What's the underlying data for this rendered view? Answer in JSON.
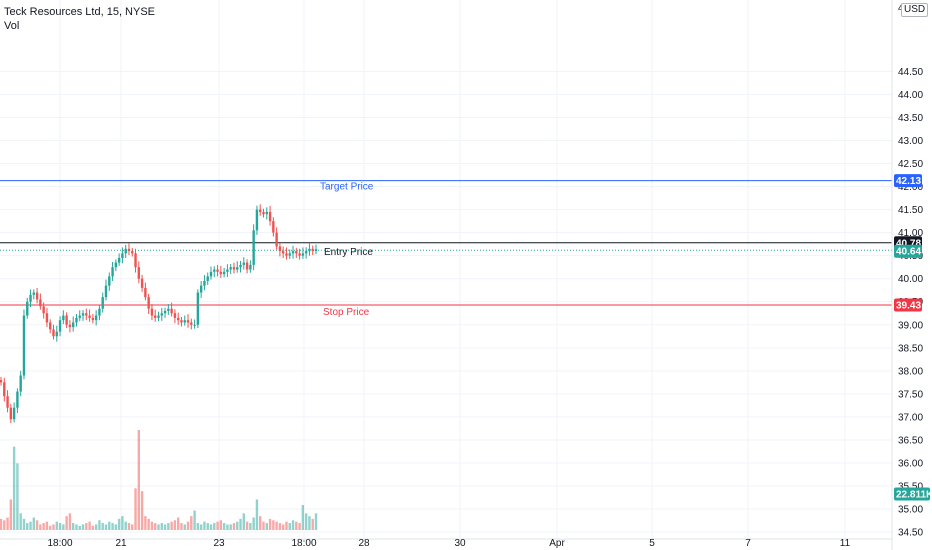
{
  "symbol": {
    "title": "Teck Resources Ltd, 15, NYSE",
    "volume_label": "Vol",
    "currency": "USD",
    "top_tick_partial": "4"
  },
  "colors": {
    "up": "#26a69a",
    "down": "#ef5350",
    "target": "#2962ff",
    "stop": "#f23645",
    "entry": "#131722",
    "current": "#26a69a"
  },
  "levels": {
    "target": {
      "label": "Target Price",
      "value": 42.13,
      "badge": "42.13"
    },
    "entry": {
      "label": "Entry Price",
      "value": 40.78,
      "badge": "40.78"
    },
    "stop": {
      "label": "Stop Price",
      "value": 39.43,
      "badge": "39.43"
    },
    "last": {
      "value": 40.64,
      "badge": "40.64"
    },
    "volume": {
      "badge": "22.811K"
    }
  },
  "chart_data": {
    "type": "candlestick",
    "title": "Teck Resources Ltd, 15, NYSE",
    "y_range": [
      34.35,
      46.05
    ],
    "y_ticks": [
      "44.50",
      "44.00",
      "43.50",
      "43.00",
      "42.50",
      "42.00",
      "41.50",
      "41.00",
      "40.50",
      "40.00",
      "39.50",
      "39.00",
      "38.50",
      "38.00",
      "37.50",
      "37.00",
      "36.50",
      "36.00",
      "35.50",
      "35.00",
      "34.50"
    ],
    "x_ticks": [
      "18:00",
      "21",
      "23",
      "18:00",
      "28",
      "30",
      "Apr",
      "5",
      "7",
      "11"
    ],
    "price_path": [
      37.75,
      37.45,
      37.2,
      36.95,
      37.2,
      37.55,
      37.9,
      39.2,
      39.5,
      39.65,
      39.7,
      39.55,
      39.4,
      39.25,
      39.05,
      38.9,
      38.75,
      38.85,
      39.1,
      39.2,
      39.0,
      38.95,
      39.05,
      39.15,
      39.2,
      39.25,
      39.2,
      39.15,
      39.1,
      39.2,
      39.35,
      39.6,
      39.85,
      40.05,
      40.25,
      40.35,
      40.45,
      40.55,
      40.65,
      40.6,
      40.55,
      40.25,
      40.0,
      39.8,
      39.6,
      39.35,
      39.2,
      39.15,
      39.2,
      39.25,
      39.3,
      39.35,
      39.25,
      39.15,
      39.1,
      39.05,
      39.1,
      39.05,
      39.0,
      39.0,
      39.7,
      39.85,
      39.95,
      40.05,
      40.15,
      40.2,
      40.15,
      40.1,
      40.15,
      40.2,
      40.25,
      40.2,
      40.25,
      40.3,
      40.35,
      40.2,
      40.3,
      41.05,
      41.5,
      41.45,
      41.4,
      41.45,
      41.25,
      41.0,
      40.7,
      40.6,
      40.55,
      40.5,
      40.55,
      40.6,
      40.55,
      40.5,
      40.55,
      40.6,
      40.65,
      40.6,
      40.64
    ],
    "volume": [
      8,
      7,
      9,
      22,
      60,
      48,
      12,
      8,
      5,
      6,
      9,
      7,
      4,
      5,
      6,
      3,
      4,
      6,
      5,
      4,
      10,
      12,
      5,
      4,
      3,
      4,
      5,
      6,
      3,
      4,
      7,
      5,
      4,
      6,
      5,
      4,
      8,
      10,
      6,
      5,
      4,
      30,
      72,
      28,
      10,
      8,
      6,
      5,
      4,
      5,
      4,
      5,
      6,
      7,
      9,
      5,
      4,
      6,
      10,
      14,
      5,
      4,
      6,
      5,
      4,
      5,
      6,
      7,
      5,
      4,
      4,
      5,
      6,
      8,
      12,
      6,
      5,
      9,
      22,
      10,
      6,
      5,
      8,
      7,
      6,
      5,
      4,
      6,
      5,
      7,
      6,
      5,
      18,
      12,
      10,
      8,
      12
    ]
  }
}
